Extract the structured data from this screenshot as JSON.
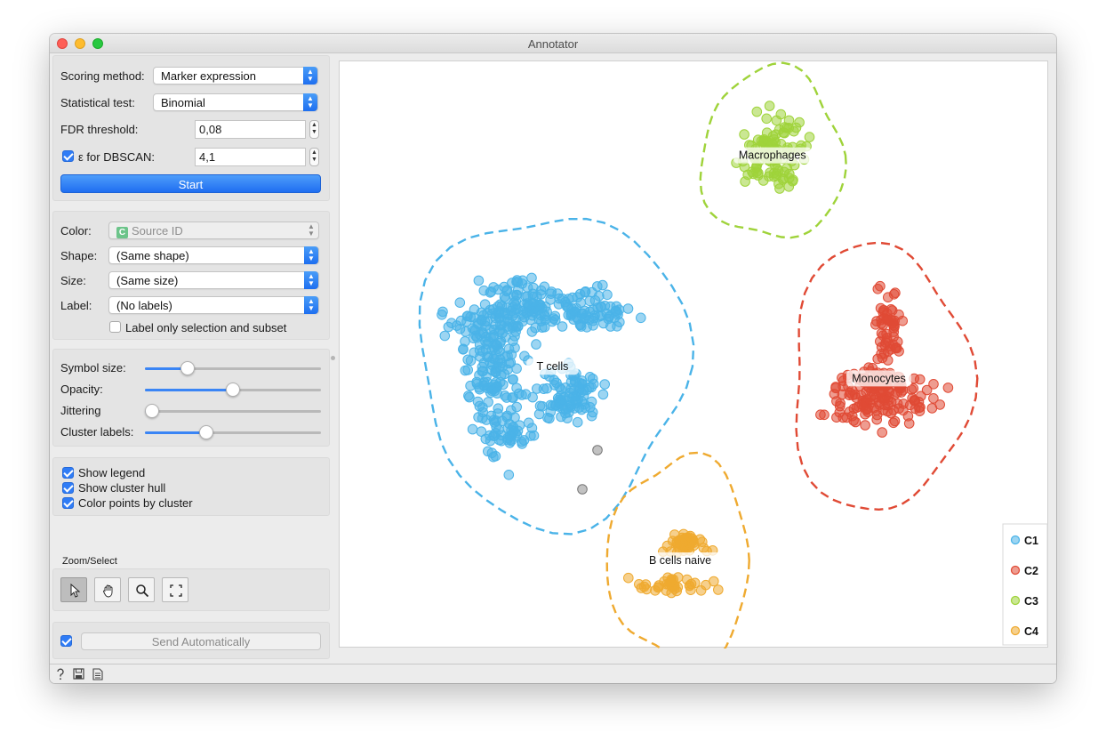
{
  "window": {
    "title": "Annotator"
  },
  "settings": {
    "scoring_label": "Scoring method:",
    "scoring_value": "Marker expression",
    "test_label": "Statistical test:",
    "test_value": "Binomial",
    "fdr_label": "FDR threshold:",
    "fdr_value": "0,08",
    "eps_label": "ε for DBSCAN:",
    "eps_checked": true,
    "eps_value": "4,1",
    "start_label": "Start"
  },
  "display": {
    "color_label": "Color:",
    "color_value": "Source ID",
    "color_badge": "C",
    "shape_label": "Shape:",
    "shape_value": "(Same shape)",
    "size_label": "Size:",
    "size_value": "(Same size)",
    "label_label": "Label:",
    "label_value": "(No labels)",
    "label_only_text": "Label only selection and subset",
    "label_only_checked": false
  },
  "sliders": [
    {
      "label": "Symbol size:",
      "value": 0.24
    },
    {
      "label": "Opacity:",
      "value": 0.5
    },
    {
      "label": "Jittering",
      "value": 0.04
    },
    {
      "label": "Cluster labels:",
      "value": 0.35
    }
  ],
  "options": [
    {
      "label": "Show legend",
      "checked": true
    },
    {
      "label": "Show cluster hull",
      "checked": true
    },
    {
      "label": "Color points by cluster",
      "checked": true
    }
  ],
  "zoom": {
    "title": "Zoom/Select",
    "tools": [
      "pointer-icon",
      "hand-pan-icon",
      "magnifier-zoom-icon",
      "fit-view-icon"
    ]
  },
  "send": {
    "auto_checked": true,
    "label": "Send Automatically"
  },
  "colors": {
    "C1": "#4ab3e8",
    "C2": "#e04a35",
    "C3": "#9fd33a",
    "C4": "#efaa30",
    "accent": "#2f7cf6"
  },
  "chart_data": {
    "type": "scatter",
    "legend_placement": "bottom-right",
    "grid": false,
    "legend": [
      "C1",
      "C2",
      "C3",
      "C4"
    ],
    "clusters": [
      {
        "name": "C1",
        "label": "T cells",
        "color": "#4ab3e8",
        "center": [
          0.3,
          0.52
        ],
        "count": 390
      },
      {
        "name": "C2",
        "label": "Monocytes",
        "color": "#e04a35",
        "center": [
          0.76,
          0.54
        ],
        "count": 230
      },
      {
        "name": "C3",
        "label": "Macrophages",
        "color": "#9fd33a",
        "center": [
          0.61,
          0.16
        ],
        "count": 110
      },
      {
        "name": "C4",
        "label": "B cells naive",
        "color": "#efaa30",
        "center": [
          0.48,
          0.85
        ],
        "count": 70
      }
    ],
    "unclustered_points": 2
  },
  "statusbar": {
    "icons": [
      "help-icon",
      "save-icon",
      "report-icon"
    ]
  }
}
